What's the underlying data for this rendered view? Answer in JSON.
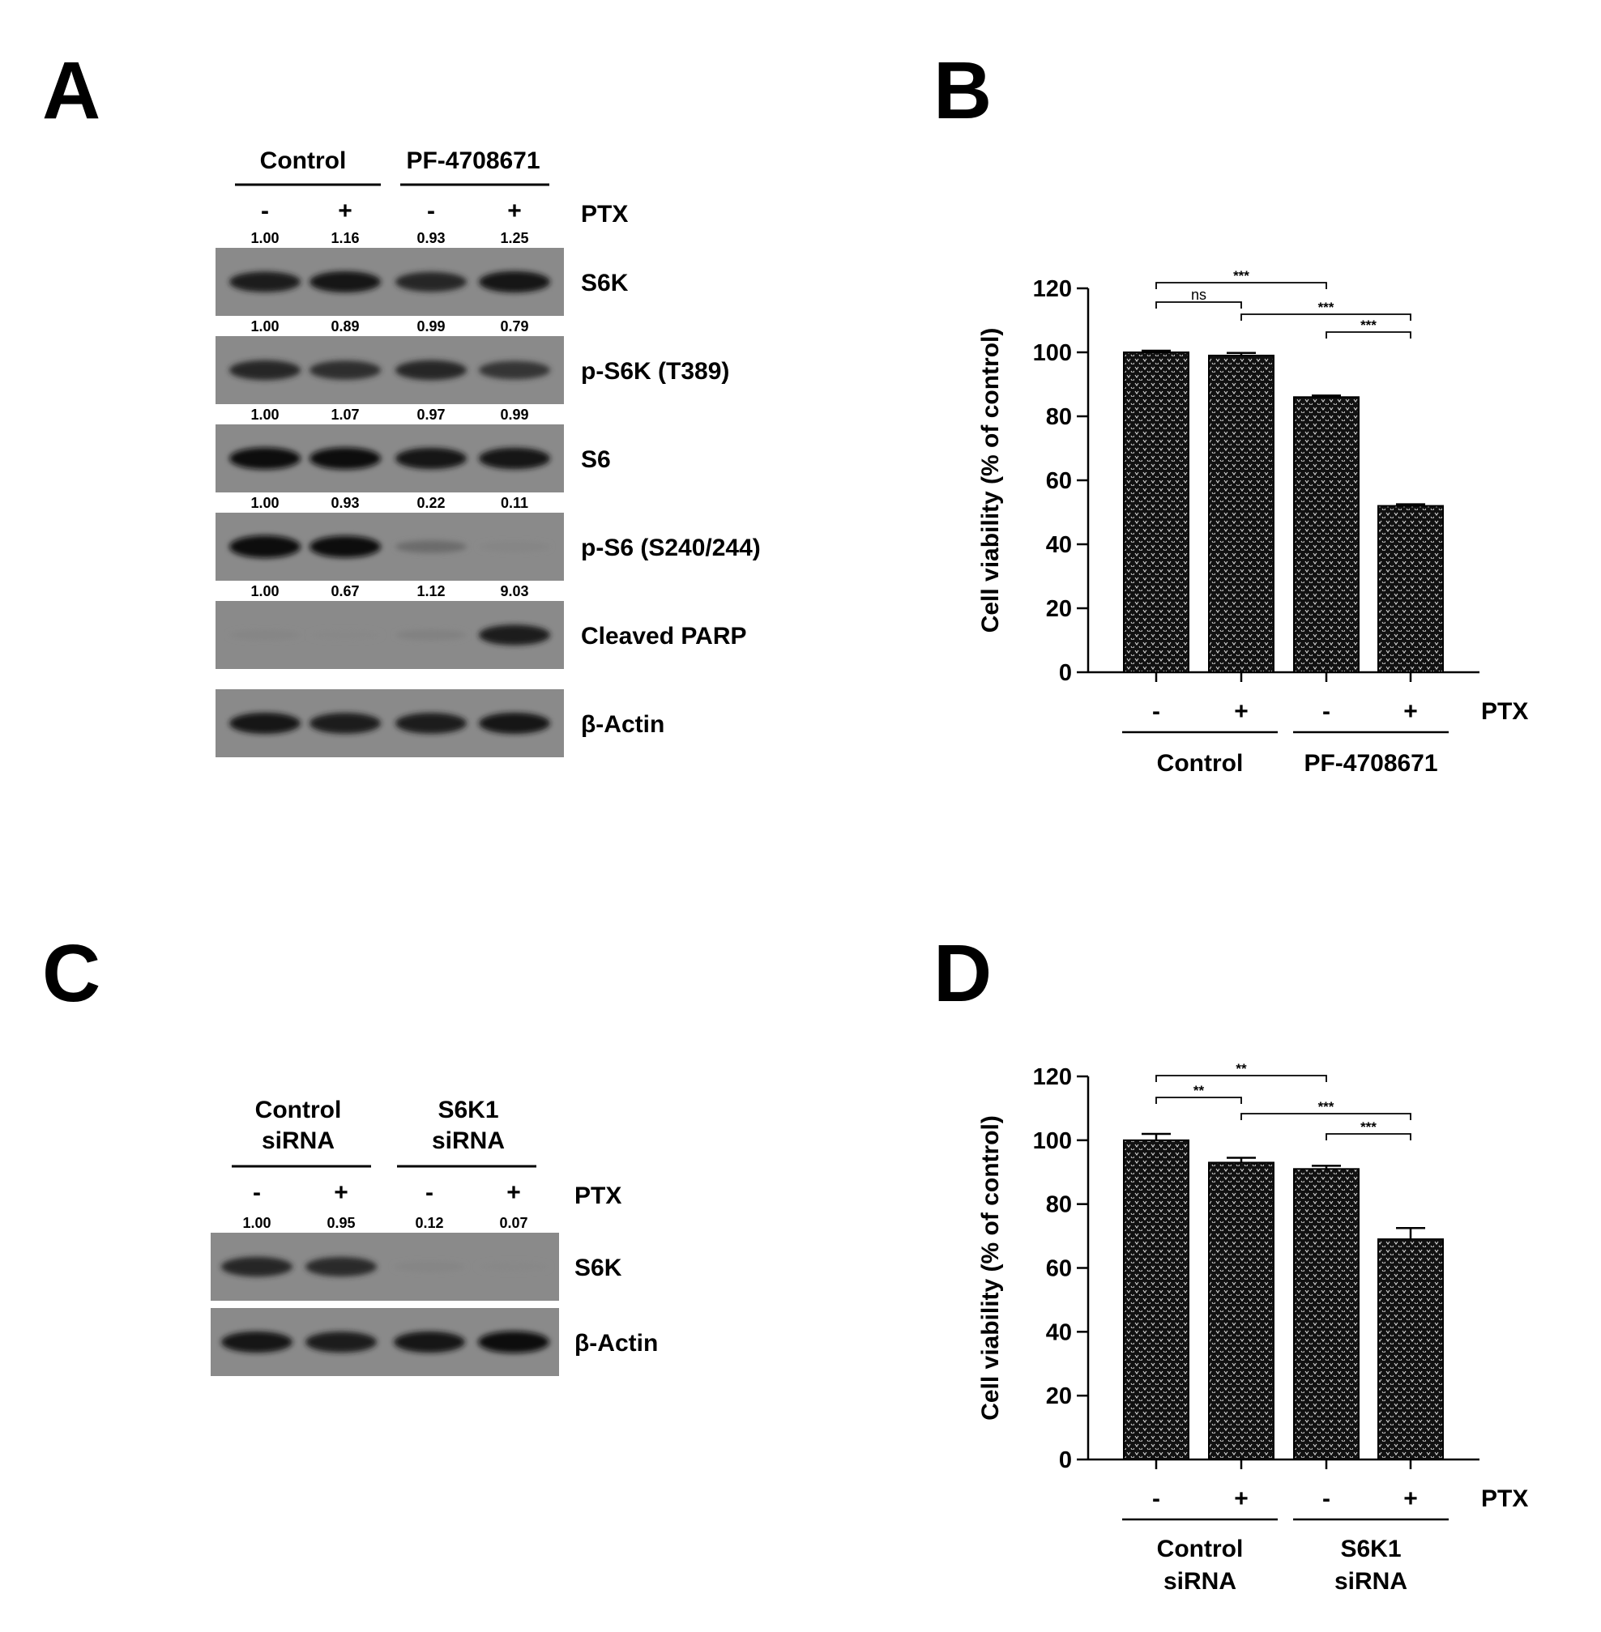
{
  "panels": {
    "A": {
      "letter": "A",
      "groups": [
        "Control",
        "PF-4708671"
      ],
      "treatment_label": "PTX",
      "lane_signs": [
        "-",
        "+",
        "-",
        "+"
      ],
      "blots": [
        {
          "name": "S6K",
          "quant": [
            "1.00",
            "1.16",
            "0.93",
            "1.25"
          ],
          "band_intensity": [
            0.85,
            0.9,
            0.8,
            0.92
          ]
        },
        {
          "name": "p-S6K (T389)",
          "quant": [
            "1.00",
            "0.89",
            "0.99",
            "0.79"
          ],
          "band_intensity": [
            0.8,
            0.75,
            0.8,
            0.7
          ]
        },
        {
          "name": "S6",
          "quant": [
            "1.00",
            "1.07",
            "0.97",
            "0.99"
          ],
          "band_intensity": [
            0.95,
            0.95,
            0.9,
            0.92
          ]
        },
        {
          "name": "p-S6 (S240/244)",
          "quant": [
            "1.00",
            "0.93",
            "0.22",
            "0.11"
          ],
          "band_intensity": [
            1.0,
            0.95,
            0.3,
            0.12
          ]
        },
        {
          "name": "Cleaved PARP",
          "quant": [
            "1.00",
            "0.67",
            "1.12",
            "9.03"
          ],
          "band_intensity": [
            0.12,
            0.1,
            0.15,
            0.85
          ]
        },
        {
          "name": "β-Actin",
          "quant": null,
          "band_intensity": [
            0.9,
            0.88,
            0.88,
            0.9
          ]
        }
      ]
    },
    "C": {
      "letter": "C",
      "groups": [
        [
          "Control",
          "siRNA"
        ],
        [
          "S6K1",
          "siRNA"
        ]
      ],
      "treatment_label": "PTX",
      "lane_signs": [
        "-",
        "+",
        "-",
        "+"
      ],
      "blots": [
        {
          "name": "S6K",
          "quant": [
            "1.00",
            "0.95",
            "0.12",
            "0.07"
          ],
          "band_intensity": [
            0.8,
            0.78,
            0.12,
            0.1
          ]
        },
        {
          "name": "β-Actin",
          "quant": null,
          "band_intensity": [
            0.9,
            0.88,
            0.9,
            0.95
          ]
        }
      ]
    },
    "B": {
      "letter": "B"
    },
    "D": {
      "letter": "D"
    }
  },
  "chart_data": [
    {
      "panel": "B",
      "type": "bar",
      "ylabel": "Cell viability (% of control)",
      "ylim": [
        0,
        120
      ],
      "yticks": [
        0,
        20,
        40,
        60,
        80,
        100,
        120
      ],
      "categories": [
        "-",
        "+",
        "-",
        "+"
      ],
      "values": [
        100,
        99,
        86,
        52
      ],
      "errors": [
        0.5,
        0.8,
        0.5,
        0.5
      ],
      "treatment_label": "PTX",
      "groups": [
        [
          "Control"
        ],
        [
          "PF-4708671"
        ]
      ],
      "significance": [
        {
          "from": 0,
          "to": 2,
          "label": "***",
          "level": 0
        },
        {
          "from": 0,
          "to": 1,
          "label": "ns",
          "level": 1
        },
        {
          "from": 1,
          "to": 3,
          "label": "***",
          "level": 2
        },
        {
          "from": 2,
          "to": 3,
          "label": "***",
          "level": 3
        }
      ]
    },
    {
      "panel": "D",
      "type": "bar",
      "ylabel": "Cell viability (% of control)",
      "ylim": [
        0,
        120
      ],
      "yticks": [
        0,
        20,
        40,
        60,
        80,
        100,
        120
      ],
      "categories": [
        "-",
        "+",
        "-",
        "+"
      ],
      "values": [
        100,
        93,
        91,
        69
      ],
      "errors": [
        2,
        1.5,
        1,
        3.5
      ],
      "treatment_label": "PTX",
      "groups": [
        [
          "Control",
          "siRNA"
        ],
        [
          "S6K1",
          "siRNA"
        ]
      ],
      "significance": [
        {
          "from": 0,
          "to": 2,
          "label": "**",
          "level": 0
        },
        {
          "from": 0,
          "to": 1,
          "label": "**",
          "level": 1
        },
        {
          "from": 1,
          "to": 3,
          "label": "***",
          "level": 2
        },
        {
          "from": 2,
          "to": 3,
          "label": "***",
          "level": 3
        }
      ]
    }
  ]
}
